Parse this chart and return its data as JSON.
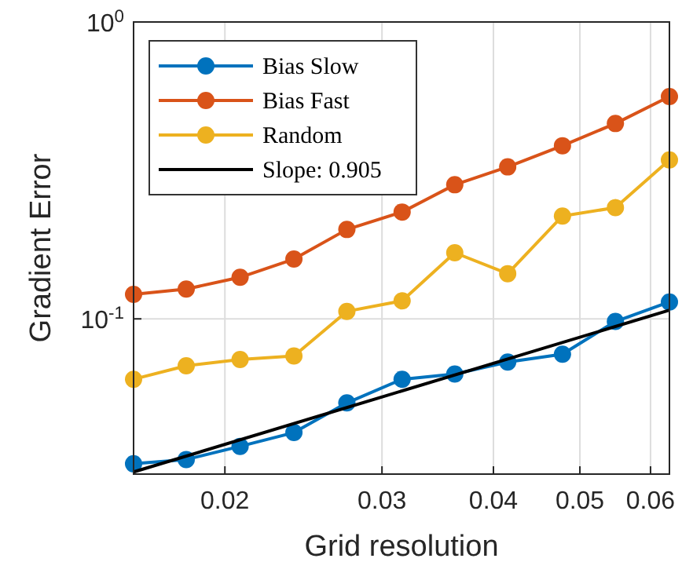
{
  "chart_data": {
    "type": "line",
    "xlabel": "Grid resolution",
    "ylabel": "Gradient Error",
    "log": "xy",
    "grid": true,
    "legend": "top left",
    "marker": "circle",
    "x": [
      0.0158,
      0.0181,
      0.0208,
      0.0239,
      0.0274,
      0.0316,
      0.0362,
      0.0415,
      0.0478,
      0.0548,
      0.063
    ],
    "xlim": [
      0.0158,
      0.063
    ],
    "xticks": [
      0.02,
      0.03,
      0.04,
      0.05,
      0.06
    ],
    "ylim": [
      0.03,
      1
    ],
    "yticks": [
      {
        "value": 0.1,
        "label": "10$^{-1}$"
      },
      {
        "value": 1,
        "label": "10$^{0}$"
      }
    ],
    "series": [
      {
        "name": "Bias Slow",
        "color": "#0072bd",
        "values": [
          0.0325,
          0.0336,
          0.0372,
          0.0414,
          0.0521,
          0.0626,
          0.0652,
          0.0715,
          0.076,
          0.098,
          0.114
        ]
      },
      {
        "name": "Bias Fast",
        "color": "#d95319",
        "values": [
          0.121,
          0.126,
          0.138,
          0.159,
          0.2,
          0.229,
          0.283,
          0.325,
          0.383,
          0.455,
          0.561
        ]
      },
      {
        "name": "Random",
        "color": "#edb120",
        "values": [
          0.0626,
          0.0695,
          0.073,
          0.075,
          0.106,
          0.115,
          0.167,
          0.142,
          0.222,
          0.237,
          0.343
        ]
      },
      {
        "name": "Slope: 0.905",
        "color": "#000000",
        "marker": "none",
        "x": [
          0.0158,
          0.063
        ],
        "values": [
          0.0305,
          0.107
        ]
      }
    ]
  }
}
